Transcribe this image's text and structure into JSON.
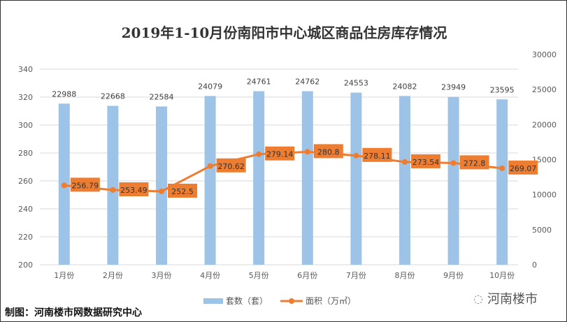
{
  "chart_data": {
    "type": "bar+line",
    "title": "2019年1-10月份南阳市中心城区商品住房库存情况",
    "categories": [
      "1月份",
      "2月份",
      "3月份",
      "4月份",
      "5月份",
      "6月份",
      "7月份",
      "8月份",
      "9月份",
      "10月份"
    ],
    "series": [
      {
        "name": "套数（套）",
        "type": "bar",
        "axis": "right",
        "color": "#9dc3e6",
        "values": [
          22988,
          22668,
          22584,
          24079,
          24761,
          24762,
          24553,
          24082,
          23949,
          23595
        ]
      },
      {
        "name": "面积（万㎡）",
        "type": "line",
        "axis": "left",
        "color": "#ed7d31",
        "values": [
          256.79,
          253.49,
          252.5,
          270.62,
          279.14,
          280.8,
          278.11,
          273.54,
          272.8,
          269.07
        ]
      }
    ],
    "left_axis": {
      "ylim": [
        200,
        340
      ],
      "ticks": [
        200,
        220,
        240,
        260,
        280,
        300,
        320,
        340
      ]
    },
    "right_axis": {
      "ylim": [
        0,
        30000
      ],
      "ticks": [
        0,
        5000,
        10000,
        15000,
        20000,
        25000,
        30000
      ]
    },
    "grid": true,
    "legend": "bottom"
  },
  "footer": {
    "credit": "制图：河南楼市网数据研究中心",
    "logo_text": "河南楼市"
  }
}
